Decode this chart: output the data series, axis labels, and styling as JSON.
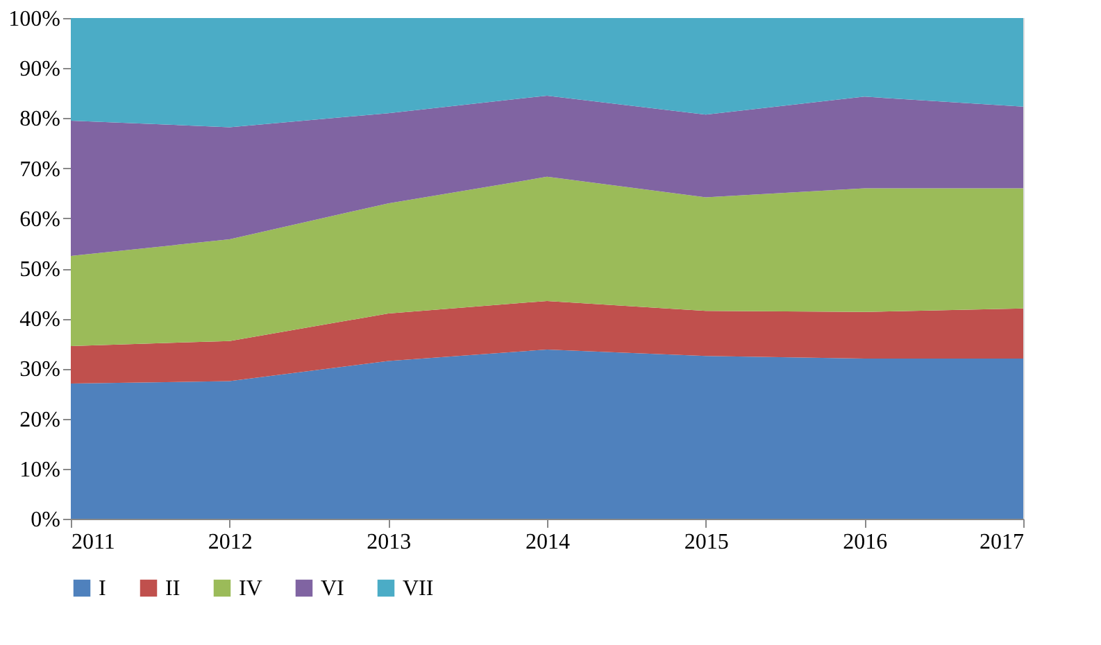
{
  "chart_data": {
    "type": "area",
    "stacked": true,
    "x": [
      2011,
      2012,
      2013,
      2014,
      2015,
      2016,
      2017
    ],
    "xlim": [
      2011,
      2017
    ],
    "xticks": [
      2011,
      2012,
      2013,
      2014,
      2015,
      2016,
      2017
    ],
    "ylim": [
      0,
      100
    ],
    "yticks": [
      {
        "value": 0,
        "label": "0%"
      },
      {
        "value": 10,
        "label": "10%"
      },
      {
        "value": 20,
        "label": "20%"
      },
      {
        "value": 30,
        "label": "30%"
      },
      {
        "value": 40,
        "label": "40%"
      },
      {
        "value": 50,
        "label": "50%"
      },
      {
        "value": 60,
        "label": "60%"
      },
      {
        "value": 70,
        "label": "70%"
      },
      {
        "value": 80,
        "label": "80%"
      },
      {
        "value": 90,
        "label": "90%"
      },
      {
        "value": 100,
        "label": "100%"
      }
    ],
    "grid": false,
    "legend": "bottom",
    "series": [
      {
        "name": "I",
        "color": "#4f81bd",
        "values": [
          27,
          27.5,
          31.5,
          33.8,
          32.5,
          32,
          32
        ]
      },
      {
        "name": "II",
        "color": "#c0504d",
        "values": [
          7.5,
          8,
          9.5,
          9.7,
          9,
          9.3,
          10
        ]
      },
      {
        "name": "IV",
        "color": "#9bbb59",
        "values": [
          18,
          20.3,
          22,
          24.8,
          22.7,
          24.7,
          24
        ]
      },
      {
        "name": "VI",
        "color": "#8064a2",
        "values": [
          27,
          22.4,
          18,
          16.2,
          16.5,
          18.3,
          16.3
        ]
      },
      {
        "name": "VII",
        "color": "#4bacc6",
        "values": [
          20.5,
          21.8,
          19,
          15.5,
          19.3,
          15.7,
          17.7
        ]
      }
    ]
  }
}
